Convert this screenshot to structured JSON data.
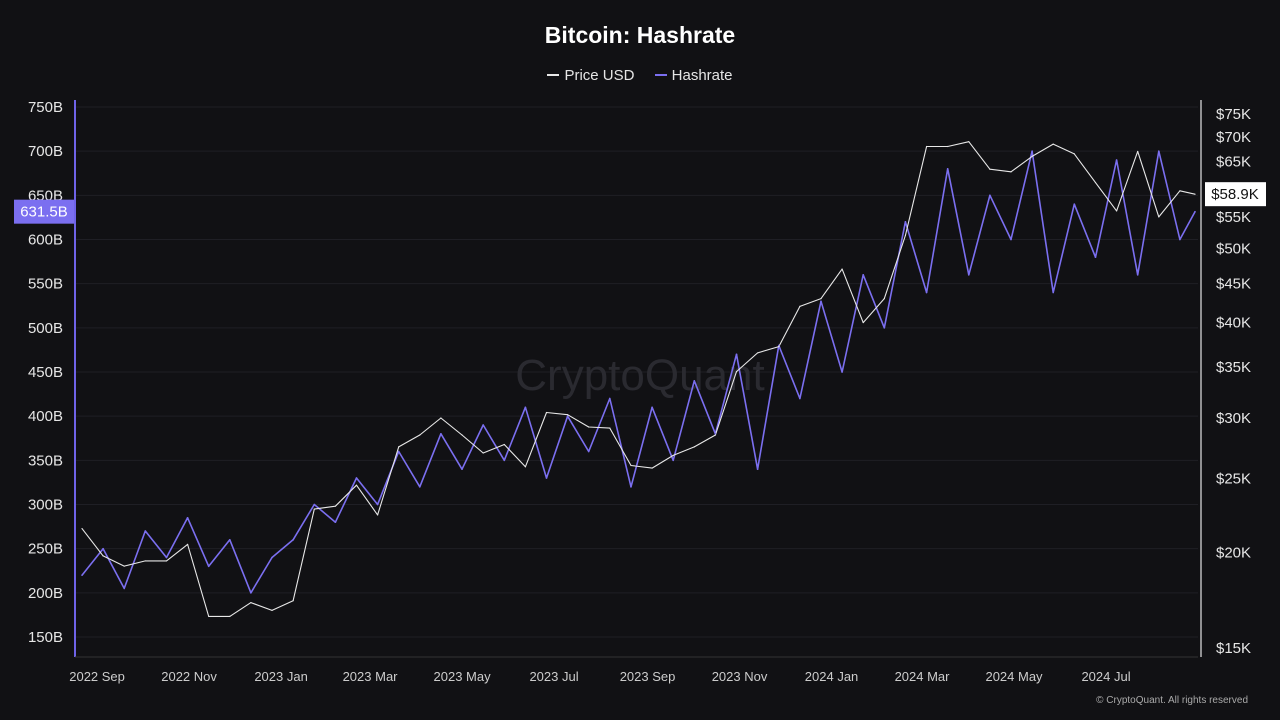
{
  "chart_data": {
    "type": "line",
    "title": "Bitcoin: Hashrate",
    "legend": {
      "position": "top-center",
      "entries": [
        "Price USD",
        "Hashrate"
      ]
    },
    "watermark": "CryptoQuant",
    "footer": "© CryptoQuant. All rights reserved",
    "grid": true,
    "x_ticks": [
      {
        "label": "2022 Sep",
        "date": "2022-09-01"
      },
      {
        "label": "2022 Nov",
        "date": "2022-11-01"
      },
      {
        "label": "2023 Jan",
        "date": "2023-01-01"
      },
      {
        "label": "2023 Mar",
        "date": "2023-03-01"
      },
      {
        "label": "2023 May",
        "date": "2023-05-01"
      },
      {
        "label": "2023 Jul",
        "date": "2023-07-01"
      },
      {
        "label": "2023 Sep",
        "date": "2023-09-01"
      },
      {
        "label": "2023 Nov",
        "date": "2023-11-01"
      },
      {
        "label": "2024 Jan",
        "date": "2024-01-01"
      },
      {
        "label": "2024 Mar",
        "date": "2024-03-01"
      },
      {
        "label": "2024 May",
        "date": "2024-05-01"
      },
      {
        "label": "2024 Jul",
        "date": "2024-07-01"
      }
    ],
    "xlim": [
      "2022-08-22",
      "2024-08-29"
    ],
    "y_left": {
      "ylim": [
        150,
        750
      ],
      "ticks": [
        150,
        200,
        250,
        300,
        350,
        400,
        450,
        500,
        550,
        600,
        650,
        700,
        750
      ],
      "tick_labels": [
        "150B",
        "200B",
        "250B",
        "300B",
        "350B",
        "400B",
        "450B",
        "500B",
        "550B",
        "600B",
        "650B",
        "700B",
        "750B"
      ],
      "current_label": "631.5B"
    },
    "y_right": {
      "scale": "log",
      "ylim": [
        15,
        75
      ],
      "ticks": [
        15,
        20,
        25,
        30,
        35,
        40,
        45,
        50,
        55,
        60,
        65,
        70,
        75
      ],
      "tick_labels": [
        "$15K",
        "$20K",
        "$25K",
        "$30K",
        "$35K",
        "$40K",
        "$45K",
        "$50K",
        "$55K",
        "",
        "$65K",
        "$70K",
        "$75K"
      ],
      "current_label": "$58.9K"
    },
    "x": [
      "2022-08-22",
      "2022-09-05",
      "2022-09-19",
      "2022-10-03",
      "2022-10-17",
      "2022-10-31",
      "2022-11-14",
      "2022-11-28",
      "2022-12-12",
      "2022-12-26",
      "2023-01-09",
      "2023-01-23",
      "2023-02-06",
      "2023-02-20",
      "2023-03-06",
      "2023-03-20",
      "2023-04-03",
      "2023-04-17",
      "2023-05-01",
      "2023-05-15",
      "2023-05-29",
      "2023-06-12",
      "2023-06-26",
      "2023-07-10",
      "2023-07-24",
      "2023-08-07",
      "2023-08-21",
      "2023-09-04",
      "2023-09-18",
      "2023-10-02",
      "2023-10-16",
      "2023-10-30",
      "2023-11-13",
      "2023-11-27",
      "2023-12-11",
      "2023-12-25",
      "2024-01-08",
      "2024-01-22",
      "2024-02-05",
      "2024-02-19",
      "2024-03-04",
      "2024-03-18",
      "2024-04-01",
      "2024-04-15",
      "2024-04-29",
      "2024-05-13",
      "2024-05-27",
      "2024-06-10",
      "2024-06-24",
      "2024-07-08",
      "2024-07-22",
      "2024-08-05",
      "2024-08-19",
      "2024-08-29"
    ],
    "series": [
      {
        "name": "Hashrate",
        "axis": "left",
        "unit": "B",
        "color": "#7b6ff0",
        "values": [
          220,
          250,
          205,
          270,
          240,
          285,
          230,
          260,
          200,
          240,
          260,
          300,
          280,
          330,
          300,
          360,
          320,
          380,
          340,
          390,
          350,
          410,
          330,
          400,
          360,
          420,
          320,
          410,
          350,
          440,
          380,
          470,
          340,
          480,
          420,
          530,
          450,
          560,
          500,
          620,
          540,
          680,
          560,
          650,
          600,
          700,
          540,
          640,
          580,
          690,
          560,
          700,
          600,
          631.5
        ]
      },
      {
        "name": "Price USD",
        "axis": "right",
        "unit": "K USD",
        "color": "#e8e8e8",
        "values": [
          21.5,
          19.8,
          19.2,
          19.5,
          19.5,
          20.5,
          16.5,
          16.5,
          17.2,
          16.8,
          17.3,
          22.8,
          23,
          24.5,
          22.4,
          27.5,
          28.5,
          30,
          28.5,
          27,
          27.7,
          25.9,
          30.5,
          30.3,
          29.2,
          29.1,
          26,
          25.8,
          26.8,
          27.5,
          28.5,
          34.5,
          36.5,
          37.2,
          42,
          43,
          47,
          40,
          43,
          52,
          68,
          68,
          69,
          63.5,
          63,
          66,
          68.5,
          66.5,
          61,
          56,
          67,
          55,
          59.5,
          58.9
        ]
      }
    ]
  }
}
